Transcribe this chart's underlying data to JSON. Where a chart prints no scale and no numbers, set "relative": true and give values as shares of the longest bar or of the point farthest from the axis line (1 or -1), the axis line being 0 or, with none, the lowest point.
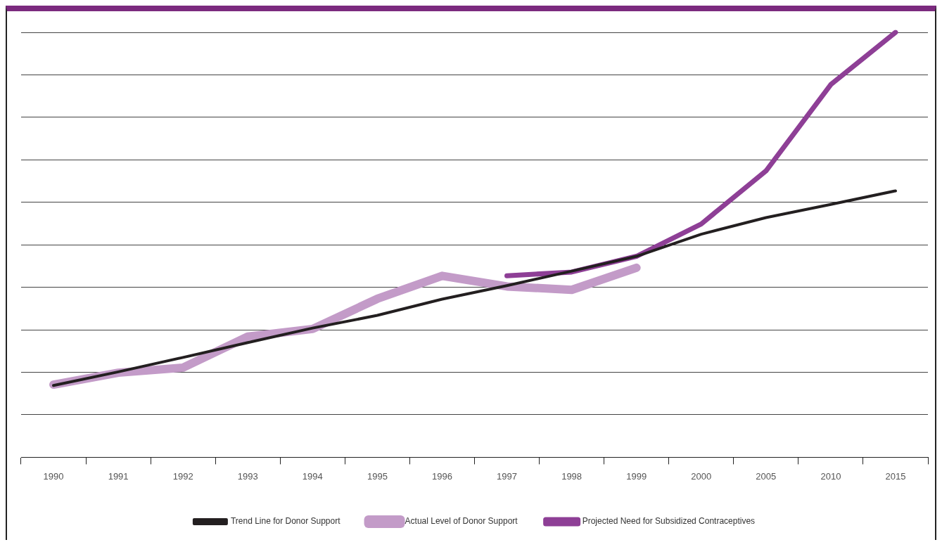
{
  "chart_data": {
    "type": "line",
    "relative": true,
    "grid": "y",
    "legend": "bottom",
    "marker": "none",
    "line_style": "solid",
    "categories": [
      "1990",
      "1991",
      "1992",
      "1993",
      "1994",
      "1995",
      "1996",
      "1997",
      "1998",
      "1999",
      "2000",
      "2005",
      "2010",
      "2015"
    ],
    "series": [
      {
        "name": "Trend Line for Donor Support",
        "color": "#231f20",
        "values": [
          0.169,
          0.201,
          0.235,
          0.27,
          0.304,
          0.334,
          0.372,
          0.404,
          0.438,
          0.473,
          0.525,
          0.564,
          0.595,
          0.627
        ]
      },
      {
        "name": "Actual Level of Donor Support",
        "color": "#c39bc8",
        "values": [
          0.171,
          0.199,
          0.211,
          0.284,
          0.302,
          0.373,
          0.427,
          0.402,
          0.394,
          0.446,
          null,
          null,
          null,
          null
        ]
      },
      {
        "name": "Projected Need for Subsidized Contraceptives",
        "color": "#8e3f96",
        "values": [
          null,
          null,
          null,
          null,
          null,
          null,
          null,
          0.427,
          0.436,
          0.473,
          0.549,
          0.674,
          0.877,
          1
        ]
      }
    ]
  }
}
